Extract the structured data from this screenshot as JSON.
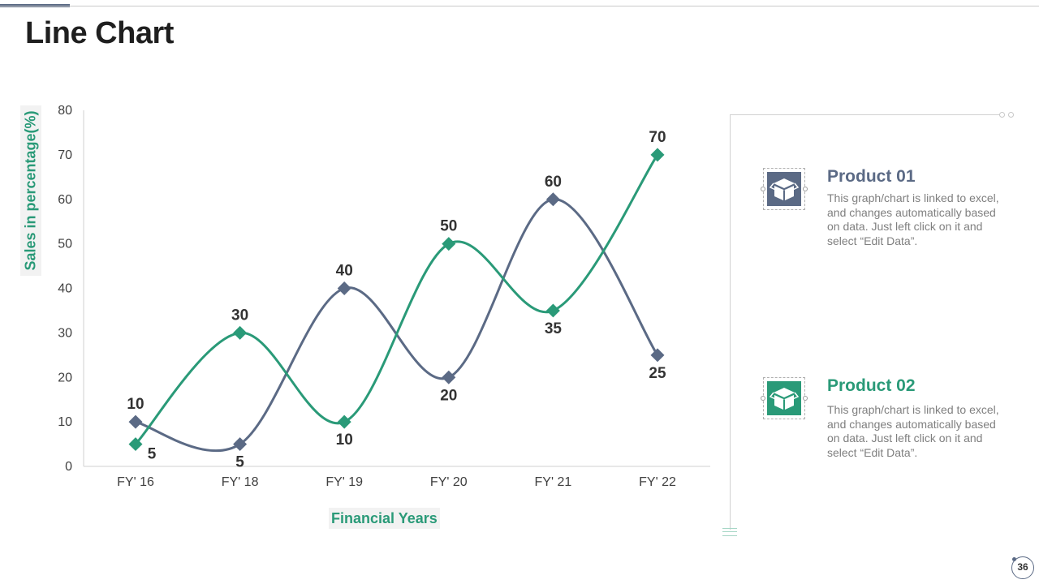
{
  "slide": {
    "title": "Line Chart",
    "page_number": "36"
  },
  "products": [
    {
      "title": "Product 01",
      "description": "This graph/chart is linked to excel, and changes automatically based on data. Just left click on it and select “Edit Data”.",
      "color": "#5b6a85",
      "icon": "box-icon"
    },
    {
      "title": "Product 02",
      "description": "This graph/chart is linked to excel, and changes automatically based on data. Just left click on it and select “Edit Data”.",
      "color": "#2a9a78",
      "icon": "box-icon"
    }
  ],
  "colors": {
    "series_1": "#5b6a85",
    "series_2": "#2a9a78",
    "axis_label": "#2a9a78"
  },
  "chart_data": {
    "type": "line",
    "title": "",
    "xlabel": "Financial Years",
    "ylabel": "Sales in percentage(%)",
    "categories": [
      "FY' 16",
      "FY' 18",
      "FY' 19",
      "FY' 20",
      "FY' 21",
      "FY' 22"
    ],
    "ylim": [
      0,
      80
    ],
    "yticks": [
      0,
      10,
      20,
      30,
      40,
      50,
      60,
      70,
      80
    ],
    "smooth": true,
    "grid": false,
    "series": [
      {
        "values": [
          10,
          5,
          40,
          20,
          60,
          25
        ],
        "color": "#5b6a85",
        "marker": "diamond"
      },
      {
        "values": [
          5,
          30,
          10,
          50,
          35,
          70
        ],
        "color": "#2a9a78",
        "marker": "diamond"
      }
    ]
  }
}
